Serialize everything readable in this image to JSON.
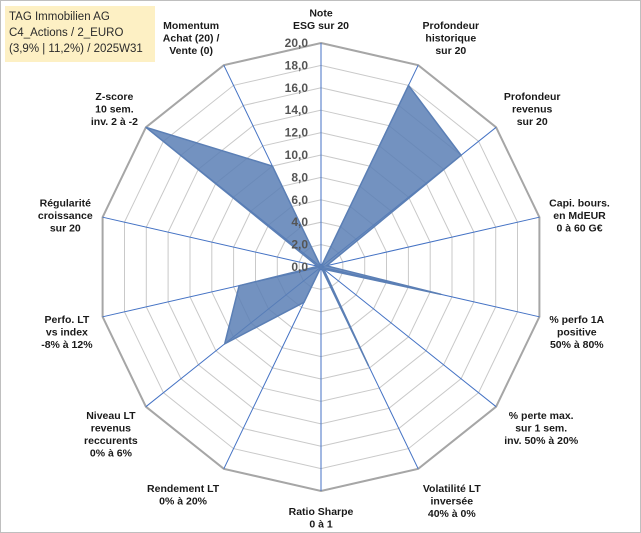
{
  "title_lines": [
    "TAG Immobilien AG",
    "C4_Actions / 2_EURO",
    "(3,9% | 11,2%) / 2025W31"
  ],
  "chart_data": {
    "type": "radar",
    "title": "TAG Immobilien AG",
    "rmin": 0,
    "rmax": 20,
    "ticks": [
      "0,0",
      "2,0",
      "4,0",
      "6,0",
      "8,0",
      "10,0",
      "12,0",
      "14,0",
      "16,0",
      "18,0",
      "20,0"
    ],
    "grid": true,
    "colors": {
      "fill": "#5b7fb5",
      "stroke": "#5b7fb5",
      "spokes": "#4472c4",
      "grid": "#c9c9c9"
    },
    "axes": [
      {
        "lines": [
          "Note",
          "ESG sur 20"
        ],
        "value": 0
      },
      {
        "lines": [
          "Profondeur",
          "historique",
          "sur 20"
        ],
        "value": 18
      },
      {
        "lines": [
          "Profondeur",
          "revenus",
          "sur 20"
        ],
        "value": 16
      },
      {
        "lines": [
          "Capi. bours.",
          "en MdEUR",
          "0 à 60 G€"
        ],
        "value": 0.5
      },
      {
        "lines": [
          "% perfo 1A",
          "positive",
          "50% à 80%"
        ],
        "value": 11
      },
      {
        "lines": [
          "% perte max.",
          "sur 1 sem.",
          "inv. 50% à 20%"
        ],
        "value": 0.3
      },
      {
        "lines": [
          "Volatilité LT",
          "inversée",
          "40% à 0%"
        ],
        "value": 9.8
      },
      {
        "lines": [
          "Ratio Sharpe",
          "0 à 1"
        ],
        "value": 0
      },
      {
        "lines": [
          "Rendement LT",
          "0% à 20%"
        ],
        "value": 3.5
      },
      {
        "lines": [
          "Niveau LT",
          "revenus",
          "reccurents",
          "0% à 6%"
        ],
        "value": 11
      },
      {
        "lines": [
          "Perfo. LT",
          "vs index",
          "-8% à 12%"
        ],
        "value": 7.5
      },
      {
        "lines": [
          "Régularité",
          "croissance",
          "sur 20"
        ],
        "value": 0.3
      },
      {
        "lines": [
          "Z-score",
          "10 sem.",
          "inv. 2 à -2"
        ],
        "value": 20
      },
      {
        "lines": [
          "Momentum",
          "Achat (20) /",
          "Vente (0)"
        ],
        "value": 10
      }
    ]
  }
}
